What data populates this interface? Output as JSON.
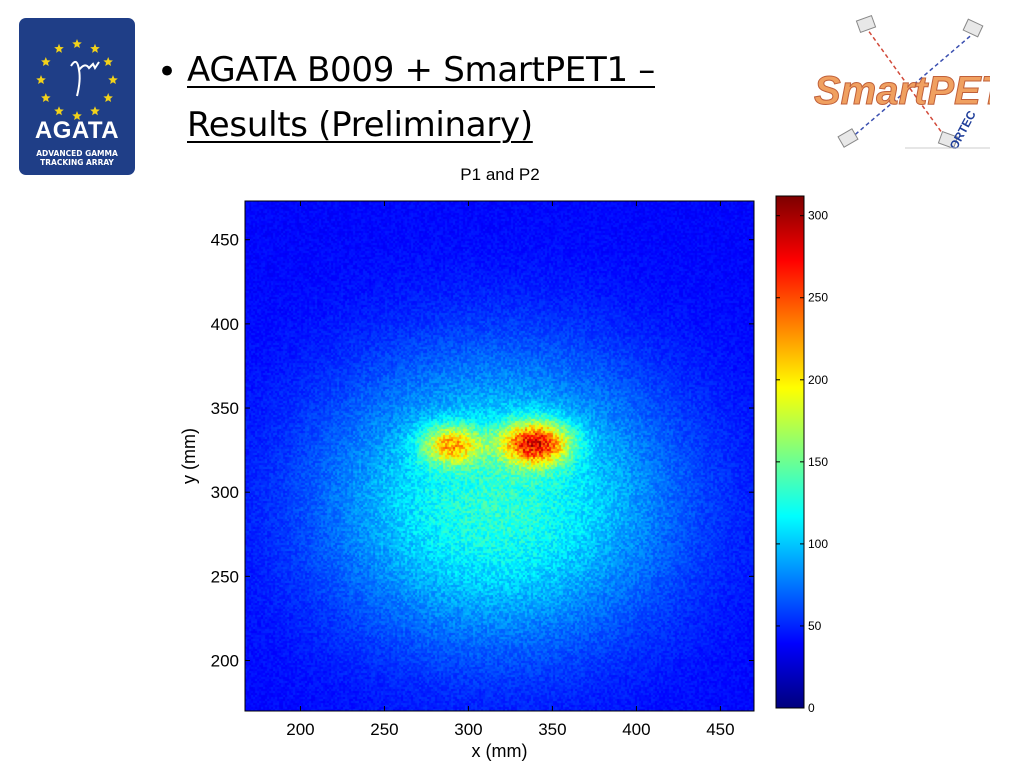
{
  "logo_agata": {
    "word": "AGATA",
    "sub1": "ADVANCED GAMMA",
    "sub2": "TRACKING ARRAY"
  },
  "title": {
    "bullet": "•",
    "line1": "AGATA B009 + SmartPET1 –",
    "line2": "Results (Preliminary)"
  },
  "logo_smartpet": {
    "word": "SmartPET",
    "ortec": "ORTEC"
  },
  "chart_data": {
    "type": "heatmap",
    "title": "P1 and P2",
    "xlabel": "x (mm)",
    "ylabel": "y (mm)",
    "xlim": [
      167,
      470
    ],
    "ylim": [
      170,
      473
    ],
    "x_ticks": [
      200,
      250,
      300,
      350,
      400,
      450
    ],
    "y_ticks": [
      200,
      250,
      300,
      350,
      400,
      450
    ],
    "colorbar": {
      "min": 0,
      "max": 312,
      "ticks": [
        0,
        50,
        100,
        150,
        200,
        250,
        300
      ]
    },
    "colormap": "jet",
    "background_level": 40,
    "components": [
      {
        "type": "broad_disk",
        "center_x": 318,
        "center_y": 295,
        "sigma_x": 70,
        "sigma_y": 58,
        "peak": 90
      },
      {
        "type": "hotspot",
        "label": "P1",
        "center_x": 290,
        "center_y": 328,
        "sigma_x": 12,
        "sigma_y": 8,
        "peak": 115
      },
      {
        "type": "hotspot",
        "label": "P2",
        "center_x": 340,
        "center_y": 329,
        "sigma_x": 14,
        "sigma_y": 9,
        "peak": 170
      }
    ]
  }
}
